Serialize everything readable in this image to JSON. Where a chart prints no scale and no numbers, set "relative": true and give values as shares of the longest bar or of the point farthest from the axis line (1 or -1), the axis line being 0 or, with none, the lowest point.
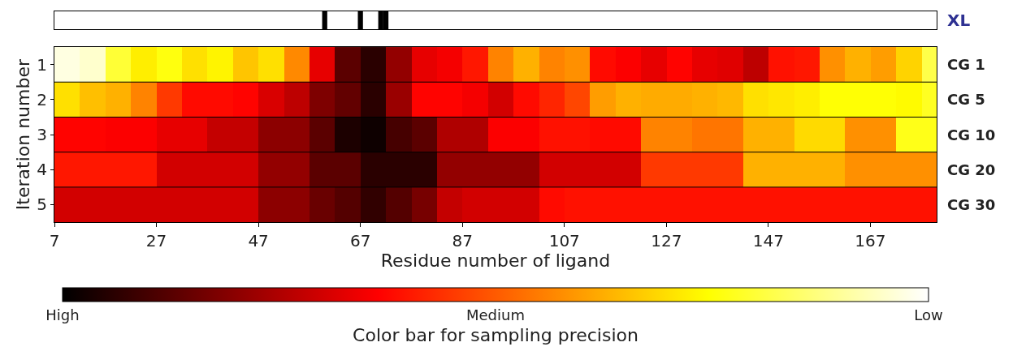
{
  "chart_data": [
    {
      "type": "bar",
      "x": [
        60,
        67,
        71,
        72
      ],
      "values": [
        1,
        1,
        1,
        1
      ],
      "color": "#000000",
      "relative": true,
      "xlim": [
        7,
        180
      ],
      "tick_labels": false,
      "annotations": [
        "XL"
      ]
    },
    {
      "type": "heatmap",
      "xlabel": "Residue number of ligand",
      "ylabel": "Iteration number",
      "clabel": "Color bar for sampling precision",
      "x": [
        9.5,
        14.5,
        19.5,
        24.5,
        29.5,
        34.5,
        39.5,
        44.5,
        49.5,
        54.5,
        59.5,
        64.5,
        69.5,
        74.5,
        79.5,
        84.5,
        89.5,
        94.5,
        99.5,
        104.5,
        109.5,
        114.5,
        119.5,
        124.5,
        129.5,
        134.5,
        139.5,
        144.5,
        149.5,
        154.5,
        159.5,
        164.5,
        169.5,
        174.5,
        179.5
      ],
      "y_categories": [
        "1",
        "2",
        "3",
        "4",
        "5"
      ],
      "y2_categories": [
        "CG 1",
        "CG 5",
        "CG 10",
        "CG 20",
        "CG 30"
      ],
      "cells": [
        [
          0.97,
          0.95,
          0.8,
          0.72,
          0.76,
          0.7,
          0.73,
          0.66,
          0.7,
          0.57,
          0.33,
          0.13,
          0.06,
          0.21,
          0.33,
          0.35,
          0.4,
          0.56,
          0.63,
          0.56,
          0.58,
          0.38,
          0.36,
          0.33,
          0.37,
          0.33,
          0.32,
          0.27,
          0.39,
          0.4,
          0.58,
          0.63,
          0.6,
          0.68,
          0.82
        ],
        [
          0.7,
          0.65,
          0.63,
          0.56,
          0.45,
          0.38,
          0.38,
          0.37,
          0.31,
          0.27,
          0.18,
          0.14,
          0.06,
          0.22,
          0.37,
          0.37,
          0.35,
          0.3,
          0.38,
          0.42,
          0.47,
          0.6,
          0.63,
          0.62,
          0.62,
          0.63,
          0.64,
          0.7,
          0.71,
          0.72,
          0.75,
          0.75,
          0.75,
          0.74,
          0.78
        ],
        [
          0.37,
          0.37,
          0.36,
          0.36,
          0.33,
          0.33,
          0.28,
          0.28,
          0.2,
          0.2,
          0.13,
          0.04,
          0.02,
          0.1,
          0.13,
          0.25,
          0.25,
          0.36,
          0.36,
          0.39,
          0.39,
          0.38,
          0.38,
          0.56,
          0.56,
          0.54,
          0.54,
          0.63,
          0.63,
          0.69,
          0.69,
          0.58,
          0.58,
          0.77,
          0.77
        ],
        [
          0.4,
          0.4,
          0.4,
          0.4,
          0.3,
          0.3,
          0.3,
          0.3,
          0.21,
          0.21,
          0.13,
          0.13,
          0.06,
          0.06,
          0.06,
          0.21,
          0.21,
          0.21,
          0.21,
          0.3,
          0.3,
          0.3,
          0.3,
          0.45,
          0.45,
          0.45,
          0.45,
          0.63,
          0.63,
          0.63,
          0.63,
          0.58,
          0.58,
          0.58,
          0.58
        ],
        [
          0.3,
          0.3,
          0.3,
          0.3,
          0.3,
          0.3,
          0.3,
          0.3,
          0.2,
          0.2,
          0.15,
          0.12,
          0.07,
          0.12,
          0.17,
          0.28,
          0.3,
          0.3,
          0.3,
          0.38,
          0.39,
          0.39,
          0.39,
          0.39,
          0.39,
          0.39,
          0.39,
          0.39,
          0.39,
          0.39,
          0.39,
          0.39,
          0.39,
          0.39,
          0.39
        ]
      ],
      "xlim": [
        7,
        180
      ],
      "xticks": [
        7,
        27,
        47,
        67,
        87,
        107,
        127,
        147,
        167
      ],
      "clim": [
        0,
        1
      ],
      "cticks": [
        {
          "value": 0,
          "label": "High"
        },
        {
          "value": 0.5,
          "label": "Medium"
        },
        {
          "value": 1,
          "label": "Low"
        }
      ]
    }
  ]
}
